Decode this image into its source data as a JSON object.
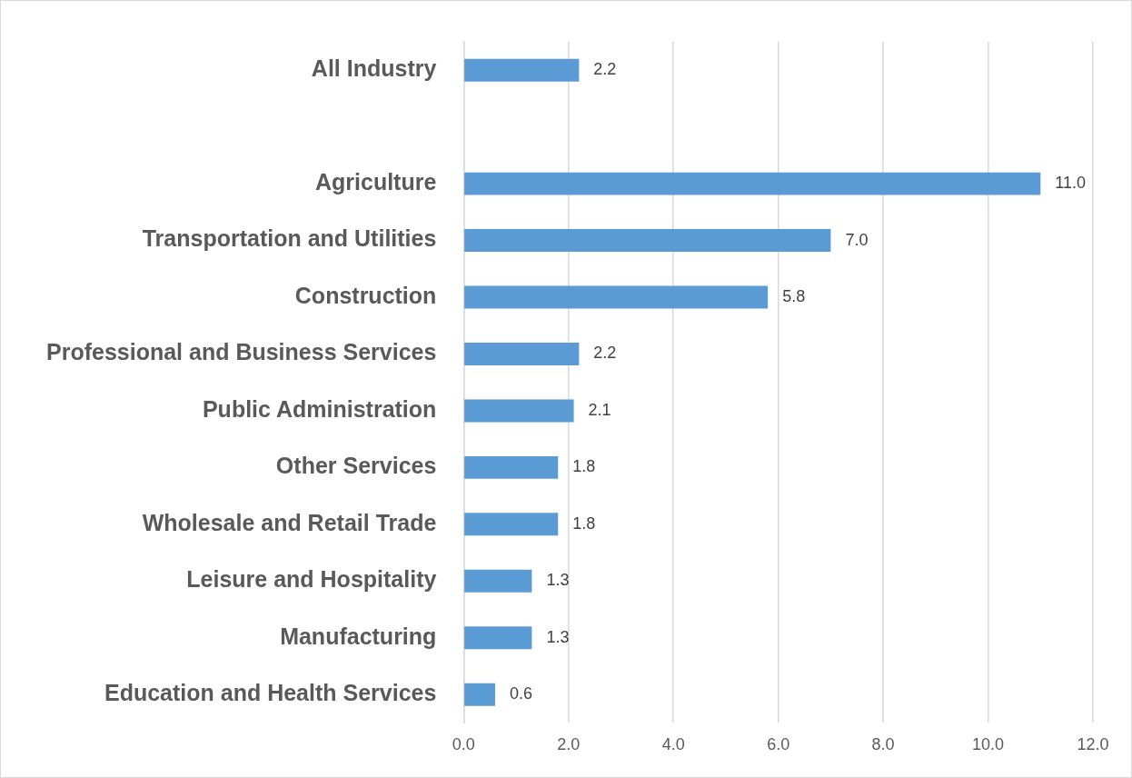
{
  "chart_data": {
    "type": "bar",
    "orientation": "horizontal",
    "categories": [
      "All Industry",
      null,
      "Agriculture",
      "Transportation and Utilities",
      "Construction",
      "Professional and Business Services",
      "Public Administration",
      "Other Services",
      "Wholesale and Retail Trade",
      "Leisure and Hospitality",
      "Manufacturing",
      "Education and Health Services"
    ],
    "values": [
      2.2,
      null,
      11.0,
      7.0,
      5.8,
      2.2,
      2.1,
      1.8,
      1.8,
      1.3,
      1.3,
      0.6
    ],
    "value_labels": [
      "2.2",
      null,
      "11.0",
      "7.0",
      "5.8",
      "2.2",
      "2.1",
      "1.8",
      "1.8",
      "1.3",
      "1.3",
      "0.6"
    ],
    "color": "#5b9bd5",
    "xlim": [
      0,
      12
    ],
    "xticks": [
      {
        "value": 0,
        "label": "0.0"
      },
      {
        "value": 2,
        "label": "2.0"
      },
      {
        "value": 4,
        "label": "4.0"
      },
      {
        "value": 6,
        "label": "6.0"
      },
      {
        "value": 8,
        "label": "8.0"
      },
      {
        "value": 10,
        "label": "10.0"
      },
      {
        "value": 12,
        "label": "12.0"
      }
    ],
    "grid": "x",
    "legend": false
  }
}
